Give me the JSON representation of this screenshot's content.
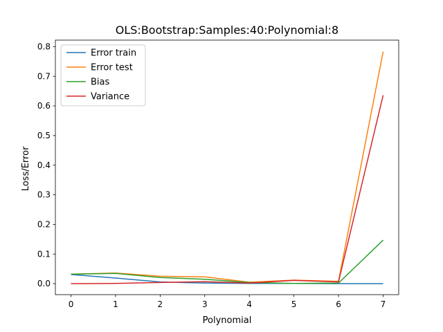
{
  "chart_data": {
    "type": "line",
    "title": "OLS:Bootstrap:Samples:40:Polynomial:8",
    "xlabel": "Polynomial",
    "ylabel": "Loss/Error",
    "x": [
      0,
      1,
      2,
      3,
      4,
      5,
      6,
      7
    ],
    "xlim": [
      -0.35,
      7.35
    ],
    "ylim": [
      -0.037,
      0.822
    ],
    "xticks": [
      0,
      1,
      2,
      3,
      4,
      5,
      6,
      7
    ],
    "yticks": [
      0.0,
      0.1,
      0.2,
      0.3,
      0.4,
      0.5,
      0.6,
      0.7,
      0.8
    ],
    "ytick_labels": [
      "0.0",
      "0.1",
      "0.2",
      "0.3",
      "0.4",
      "0.5",
      "0.6",
      "0.7",
      "0.8"
    ],
    "legend_position": "top-left",
    "grid": false,
    "series": [
      {
        "name": "Error train",
        "color": "#1f77b4",
        "values": [
          0.031,
          0.019,
          0.006,
          0.002,
          0.001,
          0.001,
          0.0,
          0.0
        ]
      },
      {
        "name": "Error test",
        "color": "#ff7f0e",
        "values": [
          0.032,
          0.036,
          0.025,
          0.023,
          0.005,
          0.012,
          0.008,
          0.783
        ]
      },
      {
        "name": "Bias",
        "color": "#2ca02c",
        "values": [
          0.032,
          0.035,
          0.021,
          0.015,
          0.004,
          0.001,
          0.002,
          0.147
        ]
      },
      {
        "name": "Variance",
        "color": "#d62728",
        "values": [
          0.0,
          0.001,
          0.004,
          0.007,
          0.002,
          0.011,
          0.006,
          0.636
        ]
      }
    ]
  }
}
